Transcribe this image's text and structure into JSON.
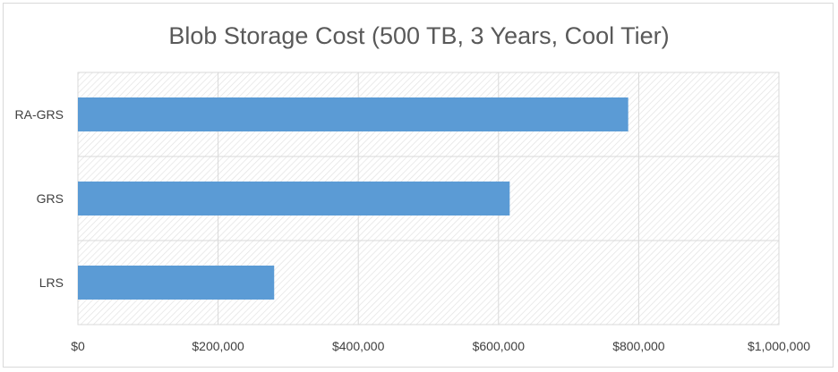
{
  "chart_data": {
    "type": "bar",
    "orientation": "horizontal",
    "title": "Blob Storage Cost (500 TB, 3 Years, Cool Tier)",
    "xlabel": "",
    "ylabel": "",
    "categories": [
      "RA-GRS",
      "GRS",
      "LRS"
    ],
    "values": [
      785000,
      616000,
      280000
    ],
    "xlim": [
      0,
      1000000
    ],
    "xticks": [
      0,
      200000,
      400000,
      600000,
      800000,
      1000000
    ],
    "xtick_labels": [
      "$0",
      "$200,000",
      "$400,000",
      "$600,000",
      "$800,000",
      "$1,000,000"
    ],
    "grid": true,
    "legend": "none",
    "colors": {
      "bar": "#5b9bd5",
      "gridline": "#d9d9d9",
      "plot_hatch": "#e6e6e6",
      "title": "#595959",
      "tick_text": "#404040"
    }
  }
}
